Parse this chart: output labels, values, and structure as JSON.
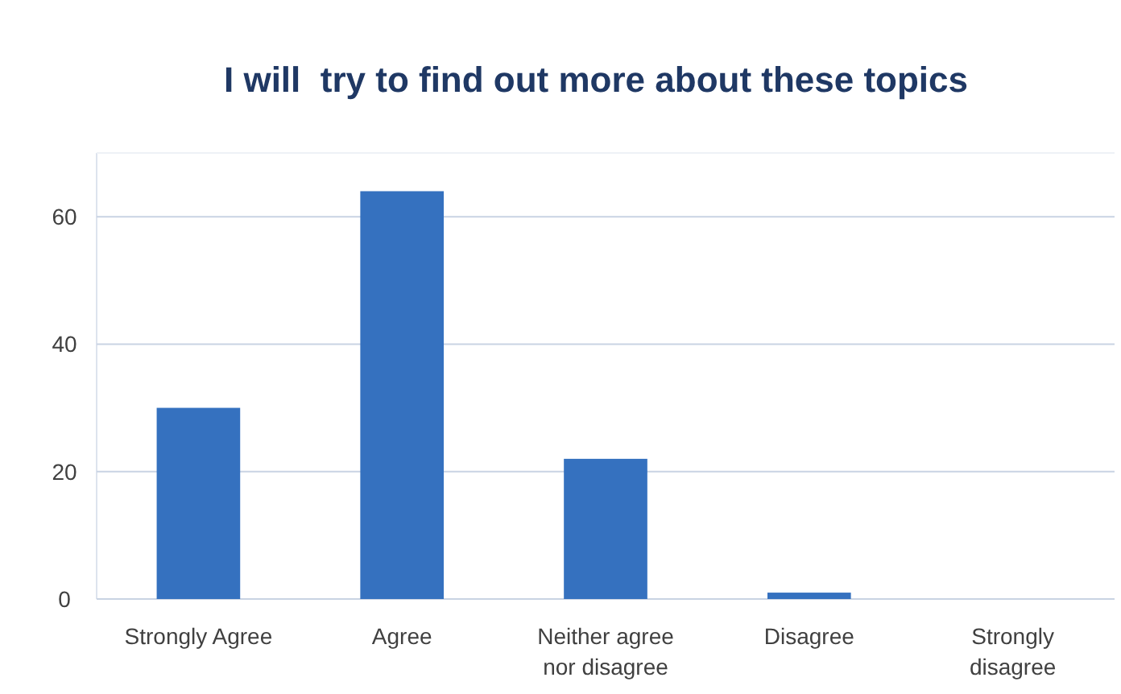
{
  "chart_data": {
    "type": "bar",
    "title": "I will  try to find out more about these topics",
    "categories": [
      "Strongly Agree",
      "Agree",
      "Neither agree nor disagree",
      "Disagree",
      "Strongly disagree"
    ],
    "values": [
      30,
      64,
      22,
      1,
      0
    ],
    "color": "#3571bf",
    "ylim": [
      0,
      70
    ],
    "yticks": [
      0,
      20,
      40,
      60
    ],
    "grid": "y"
  }
}
